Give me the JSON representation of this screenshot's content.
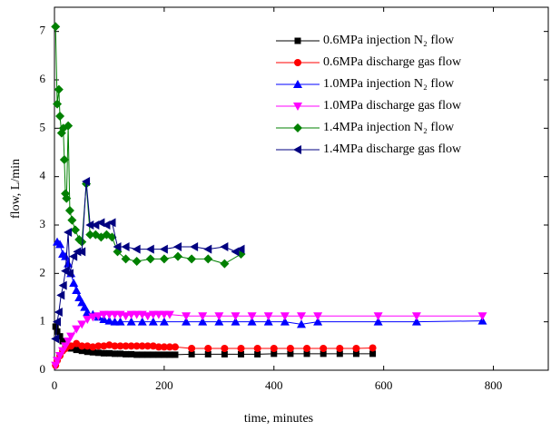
{
  "chart_data": {
    "type": "line",
    "xlabel": "time,  minutes",
    "ylabel": "flow,  L/min",
    "xlim": [
      0,
      900
    ],
    "ylim": [
      0,
      7.5
    ],
    "xticks": [
      0,
      200,
      400,
      600,
      800
    ],
    "yticks": [
      0,
      1,
      2,
      3,
      4,
      5,
      6,
      7
    ],
    "legend": "upper right",
    "series": [
      {
        "name": "0.6MPa injection N₂ flow",
        "color": "#000000",
        "marker": "square",
        "x": [
          2,
          5,
          10,
          15,
          20,
          30,
          40,
          50,
          60,
          70,
          80,
          90,
          100,
          110,
          120,
          130,
          140,
          150,
          160,
          170,
          180,
          190,
          200,
          210,
          220,
          250,
          280,
          310,
          340,
          370,
          400,
          430,
          460,
          490,
          520,
          550,
          580
        ],
        "values": [
          0.9,
          0.8,
          0.7,
          0.6,
          0.5,
          0.45,
          0.42,
          0.4,
          0.38,
          0.37,
          0.36,
          0.35,
          0.35,
          0.34,
          0.34,
          0.33,
          0.33,
          0.32,
          0.32,
          0.32,
          0.32,
          0.32,
          0.32,
          0.32,
          0.32,
          0.33,
          0.33,
          0.33,
          0.33,
          0.33,
          0.34,
          0.34,
          0.34,
          0.34,
          0.34,
          0.34,
          0.34
        ]
      },
      {
        "name": "0.6MPa discharge gas flow",
        "color": "#ff0000",
        "marker": "circle",
        "x": [
          2,
          5,
          10,
          15,
          20,
          25,
          30,
          40,
          50,
          60,
          70,
          80,
          90,
          100,
          110,
          120,
          130,
          140,
          150,
          160,
          170,
          180,
          190,
          200,
          210,
          220,
          250,
          280,
          310,
          340,
          370,
          400,
          430,
          460,
          490,
          520,
          550,
          580
        ],
        "values": [
          0.1,
          0.2,
          0.3,
          0.4,
          0.45,
          0.5,
          0.5,
          0.55,
          0.5,
          0.5,
          0.48,
          0.5,
          0.5,
          0.52,
          0.5,
          0.5,
          0.5,
          0.5,
          0.5,
          0.5,
          0.5,
          0.5,
          0.48,
          0.48,
          0.48,
          0.48,
          0.45,
          0.45,
          0.45,
          0.45,
          0.45,
          0.45,
          0.45,
          0.45,
          0.45,
          0.45,
          0.45,
          0.46
        ]
      },
      {
        "name": "1.0MPa injection N₂ flow",
        "color": "#0000ff",
        "marker": "triangle-up",
        "x": [
          5,
          10,
          15,
          20,
          25,
          30,
          35,
          40,
          45,
          50,
          55,
          60,
          70,
          80,
          90,
          100,
          110,
          120,
          140,
          160,
          180,
          200,
          240,
          270,
          300,
          330,
          360,
          390,
          420,
          450,
          480,
          590,
          660,
          780
        ],
        "values": [
          2.65,
          2.6,
          2.4,
          2.35,
          2.2,
          2.0,
          1.8,
          1.65,
          1.5,
          1.4,
          1.3,
          1.2,
          1.15,
          1.1,
          1.05,
          1.02,
          1.0,
          1.0,
          1.0,
          1.0,
          1.0,
          1.0,
          1.0,
          1.0,
          1.0,
          1.0,
          1.0,
          1.0,
          1.0,
          0.95,
          1.0,
          1.0,
          1.0,
          1.02
        ]
      },
      {
        "name": "1.0MPa discharge gas flow",
        "color": "#ff00ff",
        "marker": "triangle-down",
        "x": [
          2,
          5,
          10,
          15,
          20,
          25,
          30,
          40,
          50,
          60,
          70,
          80,
          90,
          100,
          110,
          120,
          130,
          140,
          150,
          160,
          170,
          180,
          190,
          200,
          210,
          240,
          270,
          300,
          330,
          360,
          390,
          420,
          450,
          480,
          590,
          660,
          780
        ],
        "values": [
          0.1,
          0.2,
          0.3,
          0.4,
          0.5,
          0.6,
          0.7,
          0.85,
          0.95,
          1.05,
          1.1,
          1.12,
          1.15,
          1.15,
          1.15,
          1.15,
          1.12,
          1.15,
          1.15,
          1.15,
          1.12,
          1.15,
          1.15,
          1.15,
          1.15,
          1.12,
          1.12,
          1.12,
          1.12,
          1.12,
          1.12,
          1.12,
          1.12,
          1.12,
          1.12,
          1.12,
          1.12
        ]
      },
      {
        "name": "1.4MPa injection N₂ flow",
        "color": "#008000",
        "marker": "diamond",
        "x": [
          2,
          5,
          8,
          10,
          13,
          16,
          18,
          20,
          22,
          25,
          28,
          32,
          38,
          45,
          50,
          58,
          65,
          75,
          85,
          95,
          105,
          115,
          130,
          150,
          175,
          200,
          225,
          250,
          280,
          310,
          340
        ],
        "values": [
          7.1,
          5.5,
          5.8,
          5.25,
          4.9,
          5.0,
          4.35,
          3.65,
          3.55,
          5.05,
          3.3,
          3.1,
          2.9,
          2.7,
          2.65,
          3.85,
          2.8,
          2.8,
          2.75,
          2.8,
          2.75,
          2.45,
          2.3,
          2.25,
          2.3,
          2.3,
          2.35,
          2.3,
          2.3,
          2.2,
          2.4
        ]
      },
      {
        "name": "1.4MPa discharge gas flow",
        "color": "#000080",
        "marker": "triangle-left",
        "x": [
          2,
          5,
          8,
          12,
          16,
          20,
          25,
          28,
          35,
          42,
          50,
          58,
          65,
          75,
          85,
          95,
          105,
          115,
          130,
          150,
          175,
          200,
          225,
          255,
          280,
          310,
          330,
          340
        ],
        "values": [
          0.65,
          1.0,
          1.2,
          1.55,
          1.75,
          2.05,
          2.85,
          2.0,
          2.35,
          2.45,
          2.45,
          3.9,
          3.0,
          3.0,
          3.05,
          3.0,
          3.05,
          2.55,
          2.55,
          2.5,
          2.5,
          2.5,
          2.55,
          2.55,
          2.5,
          2.55,
          2.45,
          2.5
        ]
      }
    ]
  }
}
